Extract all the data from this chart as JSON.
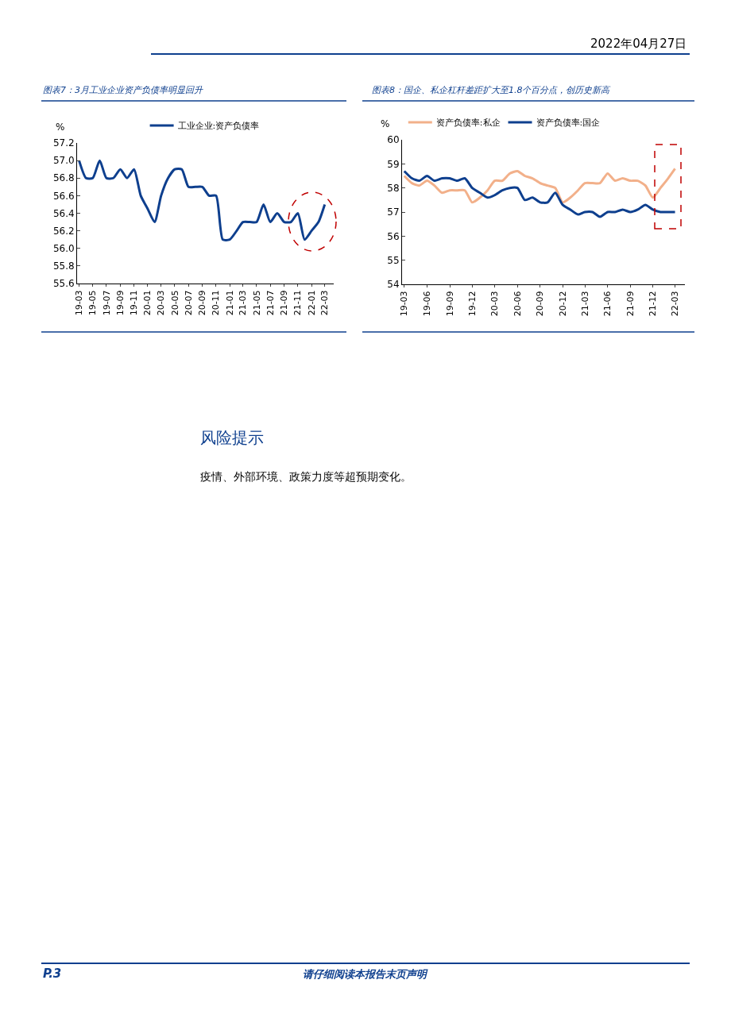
{
  "chart_data": [
    {
      "type": "line",
      "title": "图表7：3月工业企业资产负债率明显回升",
      "ylabel": "%",
      "legend": "top",
      "grid": false,
      "marker": "none",
      "line_style": "solid",
      "x": [
        "2019-03",
        "2019-04",
        "2019-05",
        "2019-06",
        "2019-07",
        "2019-08",
        "2019-09",
        "2019-10",
        "2019-11",
        "2019-12",
        "2020-01",
        "2020-02",
        "2020-03",
        "2020-04",
        "2020-05",
        "2020-06",
        "2020-07",
        "2020-08",
        "2020-09",
        "2020-10",
        "2020-11",
        "2020-12",
        "2021-01",
        "2021-02",
        "2021-03",
        "2021-04",
        "2021-05",
        "2021-06",
        "2021-07",
        "2021-08",
        "2021-09",
        "2021-10",
        "2021-11",
        "2021-12",
        "2022-01",
        "2022-02",
        "2022-03"
      ],
      "series": [
        {
          "name": "工业企业:资产负债率",
          "color": "#0e3f8e",
          "values": [
            57.0,
            56.8,
            56.8,
            57.0,
            56.8,
            56.8,
            56.9,
            56.8,
            56.9,
            56.6,
            56.45,
            56.3,
            56.6,
            56.8,
            56.9,
            56.9,
            56.7,
            56.7,
            56.7,
            56.6,
            56.6,
            56.1,
            56.1,
            56.2,
            56.3,
            56.3,
            56.3,
            56.5,
            56.3,
            56.4,
            56.3,
            56.3,
            56.4,
            56.1,
            56.2,
            56.3,
            56.5
          ]
        }
      ],
      "xlim": [
        "2019-02-20",
        "2022-04-10"
      ],
      "xticks": [
        {
          "value": "2019-03",
          "label": "19-03"
        },
        {
          "value": "2019-05",
          "label": "19-05"
        },
        {
          "value": "2019-07",
          "label": "19-07"
        },
        {
          "value": "2019-09",
          "label": "19-09"
        },
        {
          "value": "2019-11",
          "label": "19-11"
        },
        {
          "value": "2020-01",
          "label": "20-01"
        },
        {
          "value": "2020-03",
          "label": "20-03"
        },
        {
          "value": "2020-05",
          "label": "20-05"
        },
        {
          "value": "2020-07",
          "label": "20-07"
        },
        {
          "value": "2020-09",
          "label": "20-09"
        },
        {
          "value": "2020-11",
          "label": "20-11"
        },
        {
          "value": "2021-01",
          "label": "21-01"
        },
        {
          "value": "2021-03",
          "label": "21-03"
        },
        {
          "value": "2021-05",
          "label": "21-05"
        },
        {
          "value": "2021-07",
          "label": "21-07"
        },
        {
          "value": "2021-09",
          "label": "21-09"
        },
        {
          "value": "2021-11",
          "label": "21-11"
        },
        {
          "value": "2022-01",
          "label": "22-01"
        },
        {
          "value": "2022-03",
          "label": "22-03"
        }
      ],
      "ylim": [
        55.6,
        57.2
      ],
      "yticks": [
        {
          "value": 55.6,
          "label": "55.6"
        },
        {
          "value": 55.8,
          "label": "55.8"
        },
        {
          "value": 56.0,
          "label": "56.0"
        },
        {
          "value": 56.2,
          "label": "56.2"
        },
        {
          "value": 56.4,
          "label": "56.4"
        },
        {
          "value": 56.6,
          "label": "56.6"
        },
        {
          "value": 56.8,
          "label": "56.8"
        },
        {
          "value": 57.0,
          "label": "57.0"
        },
        {
          "value": 57.2,
          "label": "57.2"
        }
      ]
    },
    {
      "type": "line",
      "title": "图表8：国企、私企杠杆差距扩大至1.8个百分点，创历史新高",
      "ylabel": "%",
      "legend": "top",
      "grid": false,
      "marker": "none",
      "line_style": "solid",
      "x": [
        "2019-03",
        "2019-04",
        "2019-05",
        "2019-06",
        "2019-07",
        "2019-08",
        "2019-09",
        "2019-10",
        "2019-11",
        "2019-12",
        "2020-01",
        "2020-02",
        "2020-03",
        "2020-04",
        "2020-05",
        "2020-06",
        "2020-07",
        "2020-08",
        "2020-09",
        "2020-10",
        "2020-11",
        "2020-12",
        "2021-01",
        "2021-02",
        "2021-03",
        "2021-04",
        "2021-05",
        "2021-06",
        "2021-07",
        "2021-08",
        "2021-09",
        "2021-10",
        "2021-11",
        "2021-12",
        "2022-01",
        "2022-02",
        "2022-03"
      ],
      "series": [
        {
          "name": "资产负债率:私企",
          "color": "#f2b08a",
          "values": [
            58.5,
            58.2,
            58.1,
            58.3,
            58.1,
            57.8,
            57.9,
            57.9,
            57.9,
            57.4,
            57.6,
            57.9,
            58.3,
            58.3,
            58.6,
            58.7,
            58.5,
            58.4,
            58.2,
            58.1,
            58.0,
            57.4,
            57.6,
            57.9,
            58.2,
            58.2,
            58.2,
            58.6,
            58.3,
            58.4,
            58.3,
            58.3,
            58.1,
            57.6,
            58.0,
            58.4,
            58.8
          ]
        },
        {
          "name": "资产负债率:国企",
          "color": "#0e3f8e",
          "values": [
            58.7,
            58.4,
            58.3,
            58.5,
            58.3,
            58.4,
            58.4,
            58.3,
            58.4,
            58.0,
            57.8,
            57.6,
            57.7,
            57.9,
            58.0,
            58.0,
            57.5,
            57.6,
            57.4,
            57.4,
            57.8,
            57.3,
            57.1,
            56.9,
            57.0,
            57.0,
            56.8,
            57.0,
            57.0,
            57.1,
            57.0,
            57.1,
            57.3,
            57.1,
            57.0,
            57.0,
            57.0
          ]
        }
      ],
      "xlim": [
        "2019-02-20",
        "2022-04-10"
      ],
      "xticks": [
        {
          "value": "2019-03",
          "label": "19-03"
        },
        {
          "value": "2019-06",
          "label": "19-06"
        },
        {
          "value": "2019-09",
          "label": "19-09"
        },
        {
          "value": "2019-12",
          "label": "19-12"
        },
        {
          "value": "2020-03",
          "label": "20-03"
        },
        {
          "value": "2020-06",
          "label": "20-06"
        },
        {
          "value": "2020-09",
          "label": "20-09"
        },
        {
          "value": "2020-12",
          "label": "20-12"
        },
        {
          "value": "2021-03",
          "label": "21-03"
        },
        {
          "value": "2021-06",
          "label": "21-06"
        },
        {
          "value": "2021-09",
          "label": "21-09"
        },
        {
          "value": "2021-12",
          "label": "21-12"
        },
        {
          "value": "2022-03",
          "label": "22-03"
        }
      ],
      "ylim": [
        54,
        60
      ],
      "yticks": [
        54,
        55,
        56,
        57,
        58,
        59,
        60
      ]
    },
    {
      "type": "other",
      "annotations": [
        "2022年04月27日",
        "风险提示",
        "疫情、外部环境、政策力度等超预期变化。",
        "P.3",
        "请仔细阅读本报告末页声明"
      ]
    }
  ]
}
